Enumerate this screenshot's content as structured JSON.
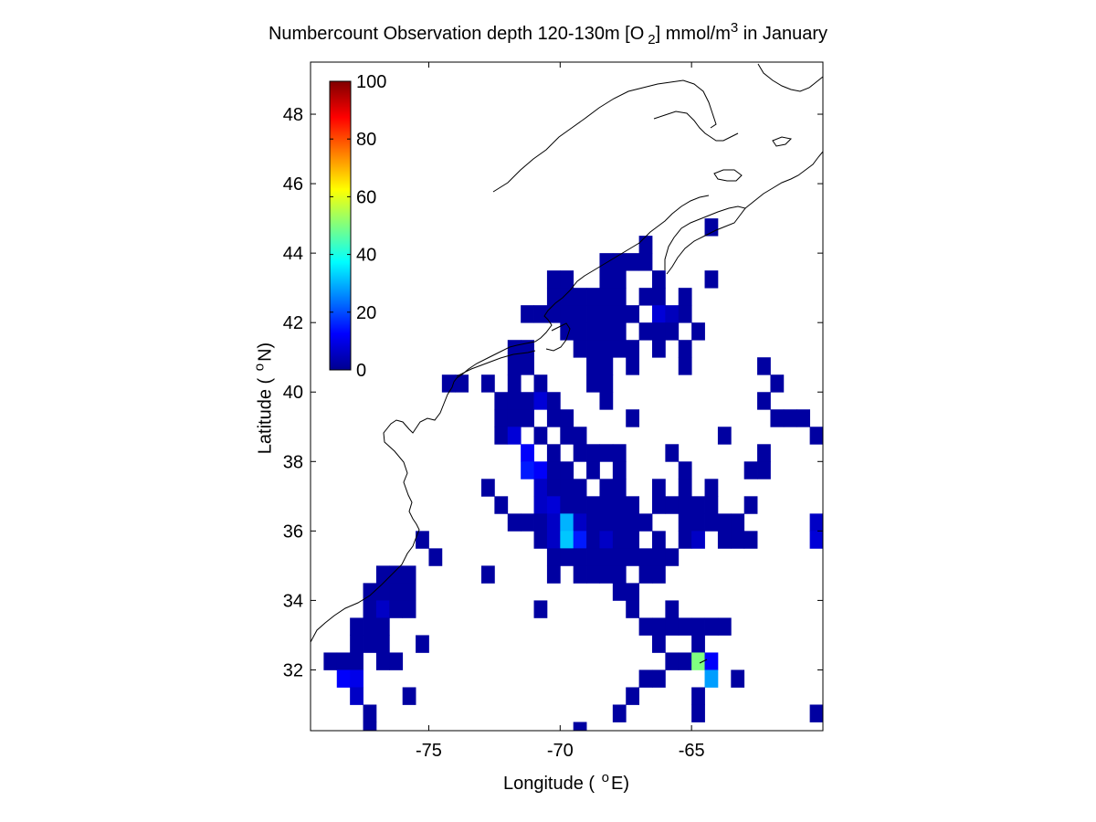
{
  "chart_data": {
    "type": "heatmap",
    "title_parts": {
      "pre": "Numbercount Observation depth 120-130m [O",
      "sub": "2",
      "mid": "] mmol/m",
      "sup": "3",
      "post": " in January"
    },
    "xlabel_parts": {
      "pre": "Longitude (",
      "deg": "o",
      "post": "E)"
    },
    "ylabel_parts": {
      "pre": "Latitude (",
      "deg": "o",
      "post": "N)"
    },
    "xlim": [
      -79.5,
      -60
    ],
    "ylim": [
      30.25,
      49.5
    ],
    "x_ticks": [
      -75,
      -70,
      -65
    ],
    "y_ticks": [
      32,
      34,
      36,
      38,
      40,
      42,
      44,
      46,
      48
    ],
    "colorbar": {
      "min": 0,
      "max": 100,
      "ticks": [
        0,
        20,
        40,
        60,
        80,
        100
      ],
      "colormap": "jet"
    },
    "grid": false,
    "cell_size_deg": 0.5,
    "default_count": 2,
    "cells": [
      [
        -66.75,
        44.25
      ],
      [
        -64.25,
        44.75
      ],
      [
        -68.25,
        43.75
      ],
      [
        -67.75,
        43.75
      ],
      [
        -67.25,
        43.75
      ],
      [
        -66.75,
        43.75
      ],
      [
        -70.25,
        43.25
      ],
      [
        -69.75,
        43.25
      ],
      [
        -68.25,
        43.25
      ],
      [
        -67.75,
        43.25
      ],
      [
        -66.25,
        43.25
      ],
      [
        -64.25,
        43.25
      ],
      [
        -70.25,
        42.75
      ],
      [
        -69.75,
        42.75
      ],
      [
        -69.25,
        42.75
      ],
      [
        -68.75,
        42.75
      ],
      [
        -68.25,
        42.75
      ],
      [
        -67.75,
        42.75
      ],
      [
        -66.75,
        42.75
      ],
      [
        -66.25,
        42.75
      ],
      [
        -65.25,
        42.75
      ],
      [
        -71.25,
        42.25
      ],
      [
        -70.75,
        42.25
      ],
      [
        -70.25,
        42.25
      ],
      [
        -69.75,
        42.25
      ],
      [
        -69.25,
        42.25
      ],
      [
        -68.75,
        42.25
      ],
      [
        -68.25,
        42.25
      ],
      [
        -67.75,
        42.25
      ],
      [
        -67.25,
        42.25
      ],
      [
        -66.25,
        42.25,
        8
      ],
      [
        -65.75,
        42.25,
        5
      ],
      [
        -65.25,
        42.25
      ],
      [
        -69.75,
        41.75
      ],
      [
        -69.25,
        41.75
      ],
      [
        -68.75,
        41.75
      ],
      [
        -68.25,
        41.75
      ],
      [
        -67.75,
        41.75
      ],
      [
        -66.75,
        41.75
      ],
      [
        -66.25,
        41.75
      ],
      [
        -65.75,
        41.75
      ],
      [
        -64.75,
        41.75
      ],
      [
        -71.75,
        41.25
      ],
      [
        -71.25,
        41.25
      ],
      [
        -69.25,
        41.25
      ],
      [
        -68.75,
        41.25
      ],
      [
        -68.25,
        41.25
      ],
      [
        -67.75,
        41.25
      ],
      [
        -67.25,
        41.25
      ],
      [
        -66.25,
        41.25
      ],
      [
        -65.25,
        41.25
      ],
      [
        -71.75,
        40.75
      ],
      [
        -71.25,
        40.75
      ],
      [
        -68.75,
        40.75
      ],
      [
        -68.25,
        40.75
      ],
      [
        -67.25,
        40.75
      ],
      [
        -65.25,
        40.75
      ],
      [
        -62.25,
        40.75
      ],
      [
        -74.25,
        40.25
      ],
      [
        -73.75,
        40.25
      ],
      [
        -72.75,
        40.25
      ],
      [
        -71.75,
        40.25
      ],
      [
        -70.75,
        40.25
      ],
      [
        -68.75,
        40.25
      ],
      [
        -68.25,
        40.25
      ],
      [
        -61.75,
        40.25
      ],
      [
        -72.25,
        39.75
      ],
      [
        -71.75,
        39.75
      ],
      [
        -71.25,
        39.75
      ],
      [
        -70.75,
        39.75,
        8
      ],
      [
        -70.25,
        39.75
      ],
      [
        -68.25,
        39.75
      ],
      [
        -62.25,
        39.75
      ],
      [
        -72.25,
        39.25
      ],
      [
        -71.75,
        39.25
      ],
      [
        -71.25,
        39.25
      ],
      [
        -70.25,
        39.25
      ],
      [
        -69.75,
        39.25
      ],
      [
        -67.25,
        39.25
      ],
      [
        -61.75,
        39.25
      ],
      [
        -61.25,
        39.25
      ],
      [
        -60.75,
        39.25
      ],
      [
        -72.25,
        38.75
      ],
      [
        -71.75,
        38.75,
        8
      ],
      [
        -70.75,
        38.75
      ],
      [
        -69.75,
        38.75
      ],
      [
        -69.25,
        38.75
      ],
      [
        -63.75,
        38.75
      ],
      [
        -60.25,
        38.75
      ],
      [
        -71.25,
        38.25,
        12
      ],
      [
        -70.25,
        38.25
      ],
      [
        -69.25,
        38.25
      ],
      [
        -68.75,
        38.25
      ],
      [
        -68.25,
        38.25
      ],
      [
        -67.75,
        38.25
      ],
      [
        -65.75,
        38.25
      ],
      [
        -62.25,
        38.25
      ],
      [
        -71.25,
        37.75,
        15
      ],
      [
        -70.75,
        37.75,
        12
      ],
      [
        -70.25,
        37.75
      ],
      [
        -69.75,
        37.75
      ],
      [
        -68.75,
        37.75
      ],
      [
        -67.75,
        37.75
      ],
      [
        -65.25,
        37.75
      ],
      [
        -62.75,
        37.75
      ],
      [
        -62.25,
        37.75
      ],
      [
        -72.75,
        37.25
      ],
      [
        -70.75,
        37.25,
        6
      ],
      [
        -70.25,
        37.25
      ],
      [
        -69.75,
        37.25
      ],
      [
        -69.25,
        37.25
      ],
      [
        -68.25,
        37.25
      ],
      [
        -67.75,
        37.25
      ],
      [
        -66.25,
        37.25
      ],
      [
        -65.25,
        37.25
      ],
      [
        -64.25,
        37.25
      ],
      [
        -72.25,
        36.75
      ],
      [
        -70.75,
        36.75,
        6
      ],
      [
        -70.25,
        36.75,
        8
      ],
      [
        -69.75,
        36.75
      ],
      [
        -69.25,
        36.75
      ],
      [
        -68.75,
        36.75
      ],
      [
        -68.25,
        36.75
      ],
      [
        -67.75,
        36.75
      ],
      [
        -67.25,
        36.75
      ],
      [
        -66.25,
        36.75
      ],
      [
        -65.75,
        36.75
      ],
      [
        -65.25,
        36.75
      ],
      [
        -64.75,
        36.75
      ],
      [
        -64.25,
        36.75
      ],
      [
        -62.75,
        36.75
      ],
      [
        -71.75,
        36.25
      ],
      [
        -71.25,
        36.25
      ],
      [
        -70.75,
        36.25
      ],
      [
        -70.25,
        36.25,
        6
      ],
      [
        -69.75,
        36.25,
        30
      ],
      [
        -69.25,
        36.25,
        6
      ],
      [
        -68.75,
        36.25
      ],
      [
        -68.25,
        36.25
      ],
      [
        -67.75,
        36.25
      ],
      [
        -67.25,
        36.25
      ],
      [
        -66.75,
        36.25
      ],
      [
        -65.25,
        36.25
      ],
      [
        -64.75,
        36.25
      ],
      [
        -64.25,
        36.25
      ],
      [
        -63.75,
        36.25
      ],
      [
        -63.25,
        36.25
      ],
      [
        -60.25,
        36.25,
        6
      ],
      [
        -75.25,
        35.75
      ],
      [
        -70.75,
        35.75
      ],
      [
        -70.25,
        35.75,
        6
      ],
      [
        -69.75,
        35.75,
        32
      ],
      [
        -69.25,
        35.75,
        15
      ],
      [
        -68.75,
        35.75
      ],
      [
        -68.25,
        35.75,
        6
      ],
      [
        -67.75,
        35.75
      ],
      [
        -67.25,
        35.75
      ],
      [
        -66.25,
        35.75
      ],
      [
        -65.25,
        35.75
      ],
      [
        -64.75,
        35.75,
        6
      ],
      [
        -63.75,
        35.75
      ],
      [
        -63.25,
        35.75
      ],
      [
        -62.75,
        35.75
      ],
      [
        -60.25,
        35.75,
        8
      ],
      [
        -74.75,
        35.25
      ],
      [
        -70.25,
        35.25
      ],
      [
        -69.75,
        35.25
      ],
      [
        -69.25,
        35.25
      ],
      [
        -68.75,
        35.25
      ],
      [
        -68.25,
        35.25
      ],
      [
        -67.75,
        35.25
      ],
      [
        -67.25,
        35.25
      ],
      [
        -66.75,
        35.25
      ],
      [
        -66.25,
        35.25
      ],
      [
        -65.75,
        35.25
      ],
      [
        -76.75,
        34.75
      ],
      [
        -76.25,
        34.75
      ],
      [
        -75.75,
        34.75
      ],
      [
        -72.75,
        34.75
      ],
      [
        -70.25,
        34.75
      ],
      [
        -69.25,
        34.75
      ],
      [
        -68.75,
        34.75
      ],
      [
        -68.25,
        34.75
      ],
      [
        -67.75,
        34.75
      ],
      [
        -66.75,
        34.75
      ],
      [
        -66.25,
        34.75
      ],
      [
        -77.25,
        34.25
      ],
      [
        -76.75,
        34.25
      ],
      [
        -76.25,
        34.25
      ],
      [
        -75.75,
        34.25
      ],
      [
        -67.75,
        34.25
      ],
      [
        -67.25,
        34.25
      ],
      [
        -77.25,
        33.75
      ],
      [
        -76.75,
        33.75,
        6
      ],
      [
        -76.25,
        33.75
      ],
      [
        -75.75,
        33.75
      ],
      [
        -70.75,
        33.75
      ],
      [
        -67.25,
        33.75
      ],
      [
        -65.75,
        33.75
      ],
      [
        -77.75,
        33.25
      ],
      [
        -77.25,
        33.25
      ],
      [
        -76.75,
        33.25
      ],
      [
        -66.75,
        33.25
      ],
      [
        -66.25,
        33.25
      ],
      [
        -65.75,
        33.25
      ],
      [
        -65.25,
        33.25
      ],
      [
        -64.75,
        33.25
      ],
      [
        -64.25,
        33.25
      ],
      [
        -63.75,
        33.25
      ],
      [
        -77.75,
        32.75
      ],
      [
        -77.25,
        32.75
      ],
      [
        -76.75,
        32.75
      ],
      [
        -75.25,
        32.75
      ],
      [
        -66.25,
        32.75
      ],
      [
        -64.75,
        32.75
      ],
      [
        -78.75,
        32.25
      ],
      [
        -78.25,
        32.25
      ],
      [
        -77.75,
        32.25
      ],
      [
        -76.75,
        32.25
      ],
      [
        -76.25,
        32.25
      ],
      [
        -65.75,
        32.25
      ],
      [
        -65.25,
        32.25
      ],
      [
        -64.75,
        32.25,
        50
      ],
      [
        -64.25,
        32.25,
        12
      ],
      [
        -78.25,
        31.75,
        12
      ],
      [
        -77.75,
        31.75,
        10
      ],
      [
        -66.75,
        31.75
      ],
      [
        -66.25,
        31.75
      ],
      [
        -64.25,
        31.75,
        28
      ],
      [
        -63.25,
        31.75
      ],
      [
        -77.75,
        31.25,
        6
      ],
      [
        -75.75,
        31.25
      ],
      [
        -67.25,
        31.25
      ],
      [
        -64.75,
        31.25
      ],
      [
        -77.25,
        30.75
      ],
      [
        -67.75,
        30.75
      ],
      [
        -64.75,
        30.75
      ],
      [
        -60.25,
        30.75
      ],
      [
        -77.25,
        30.25
      ],
      [
        -69.25,
        30.25
      ]
    ]
  }
}
